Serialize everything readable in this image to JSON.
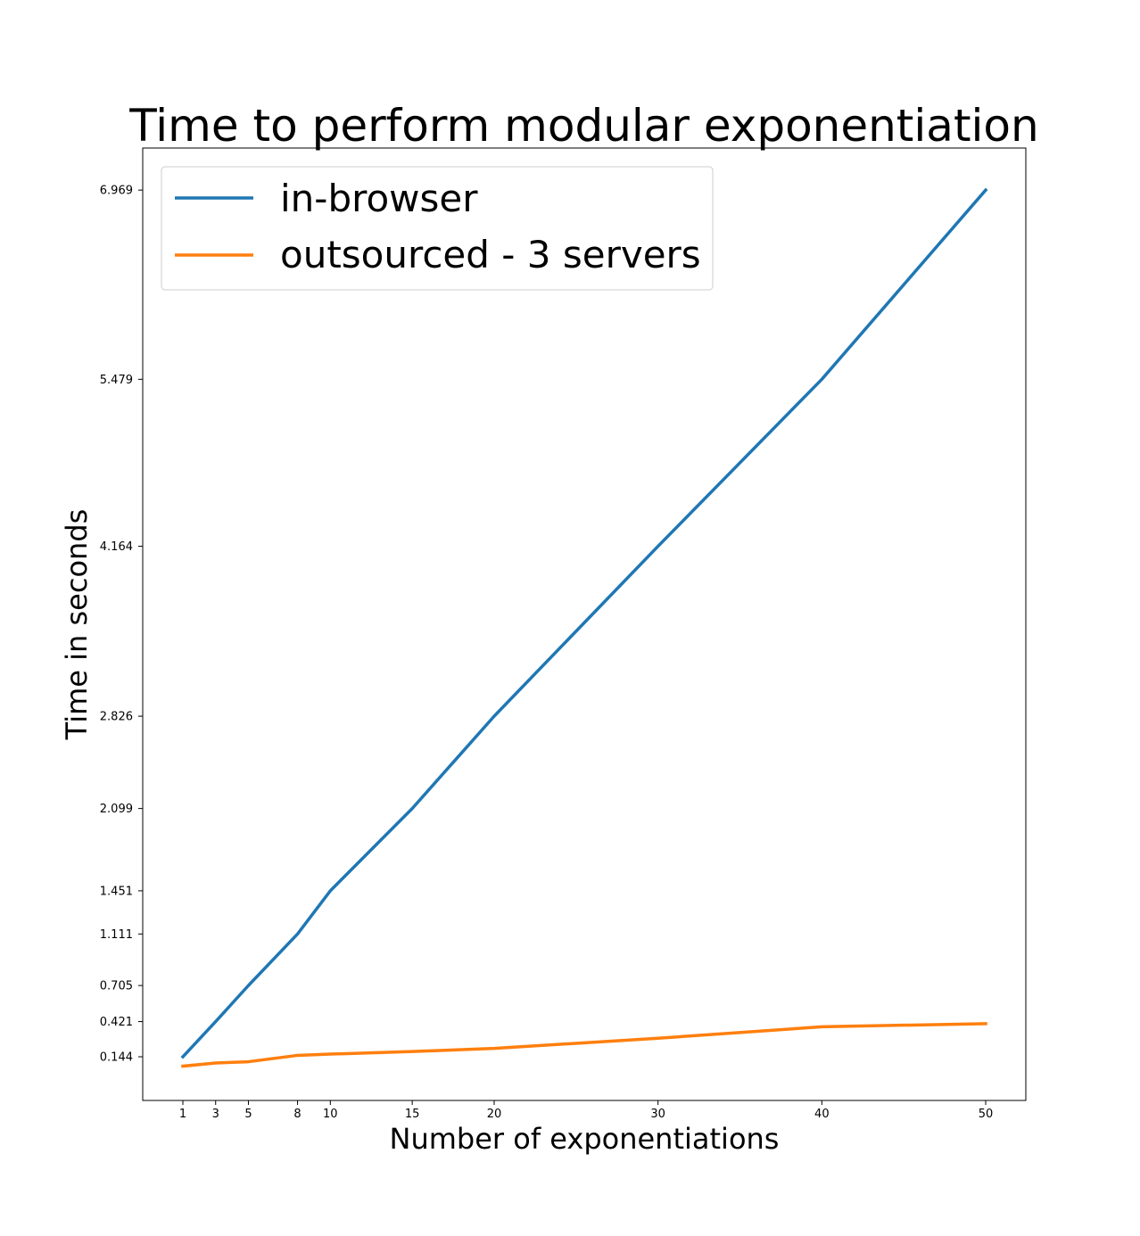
{
  "chart_data": {
    "type": "line",
    "title": "Time to perform modular exponentiation",
    "xlabel": "Number of exponentiations",
    "ylabel": "Time in seconds",
    "x": [
      1,
      3,
      5,
      8,
      10,
      15,
      20,
      30,
      40,
      50
    ],
    "x_ticks": [
      "1",
      "3",
      "5",
      "8",
      "10",
      "15",
      "20",
      "30",
      "40",
      "50"
    ],
    "y_ticks": [
      "0.144",
      "0.421",
      "0.705",
      "1.111",
      "1.451",
      "2.099",
      "2.826",
      "4.164",
      "5.479",
      "6.969"
    ],
    "xlim": [
      -1.45,
      52.45
    ],
    "ylim": [
      -0.2,
      7.3
    ],
    "grid": false,
    "legend_position": "upper-left",
    "series": [
      {
        "name": "in-browser",
        "color": "#1f77b4",
        "values": [
          0.144,
          0.421,
          0.705,
          1.111,
          1.451,
          2.099,
          2.826,
          4.164,
          5.479,
          6.969
        ]
      },
      {
        "name": "outsourced - 3 servers",
        "color": "#ff7f0e",
        "values": [
          0.07,
          0.095,
          0.105,
          0.155,
          0.165,
          0.185,
          0.21,
          0.29,
          0.38,
          0.405
        ]
      }
    ]
  }
}
